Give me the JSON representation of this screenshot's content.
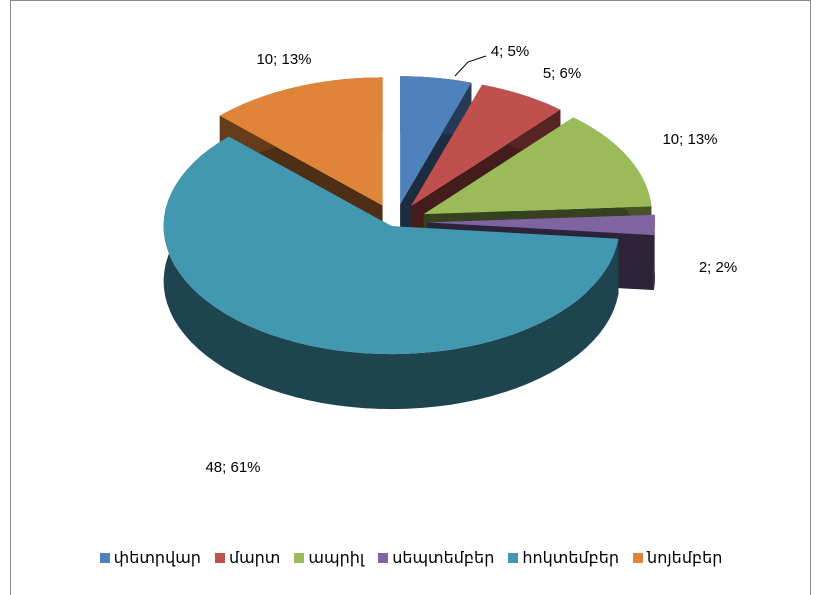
{
  "chart_data": {
    "type": "pie3d",
    "categories": [
      "փետրվար",
      "մարտ",
      "ապրիլ",
      "սեպտեմբեր",
      "հոկտեմբեր",
      "նոյեմբեր"
    ],
    "values": [
      4,
      5,
      10,
      2,
      48,
      10
    ],
    "value_labels": [
      "4; 5%",
      "5; 6%",
      "10; 13%",
      "2; 2%",
      "48; 61%",
      "10; 13%"
    ],
    "colors": [
      "#4f81bd",
      "#c0504d",
      "#9bbb59",
      "#8064a2",
      "#4198b0",
      "#e0843a"
    ],
    "legend": "bottom"
  }
}
